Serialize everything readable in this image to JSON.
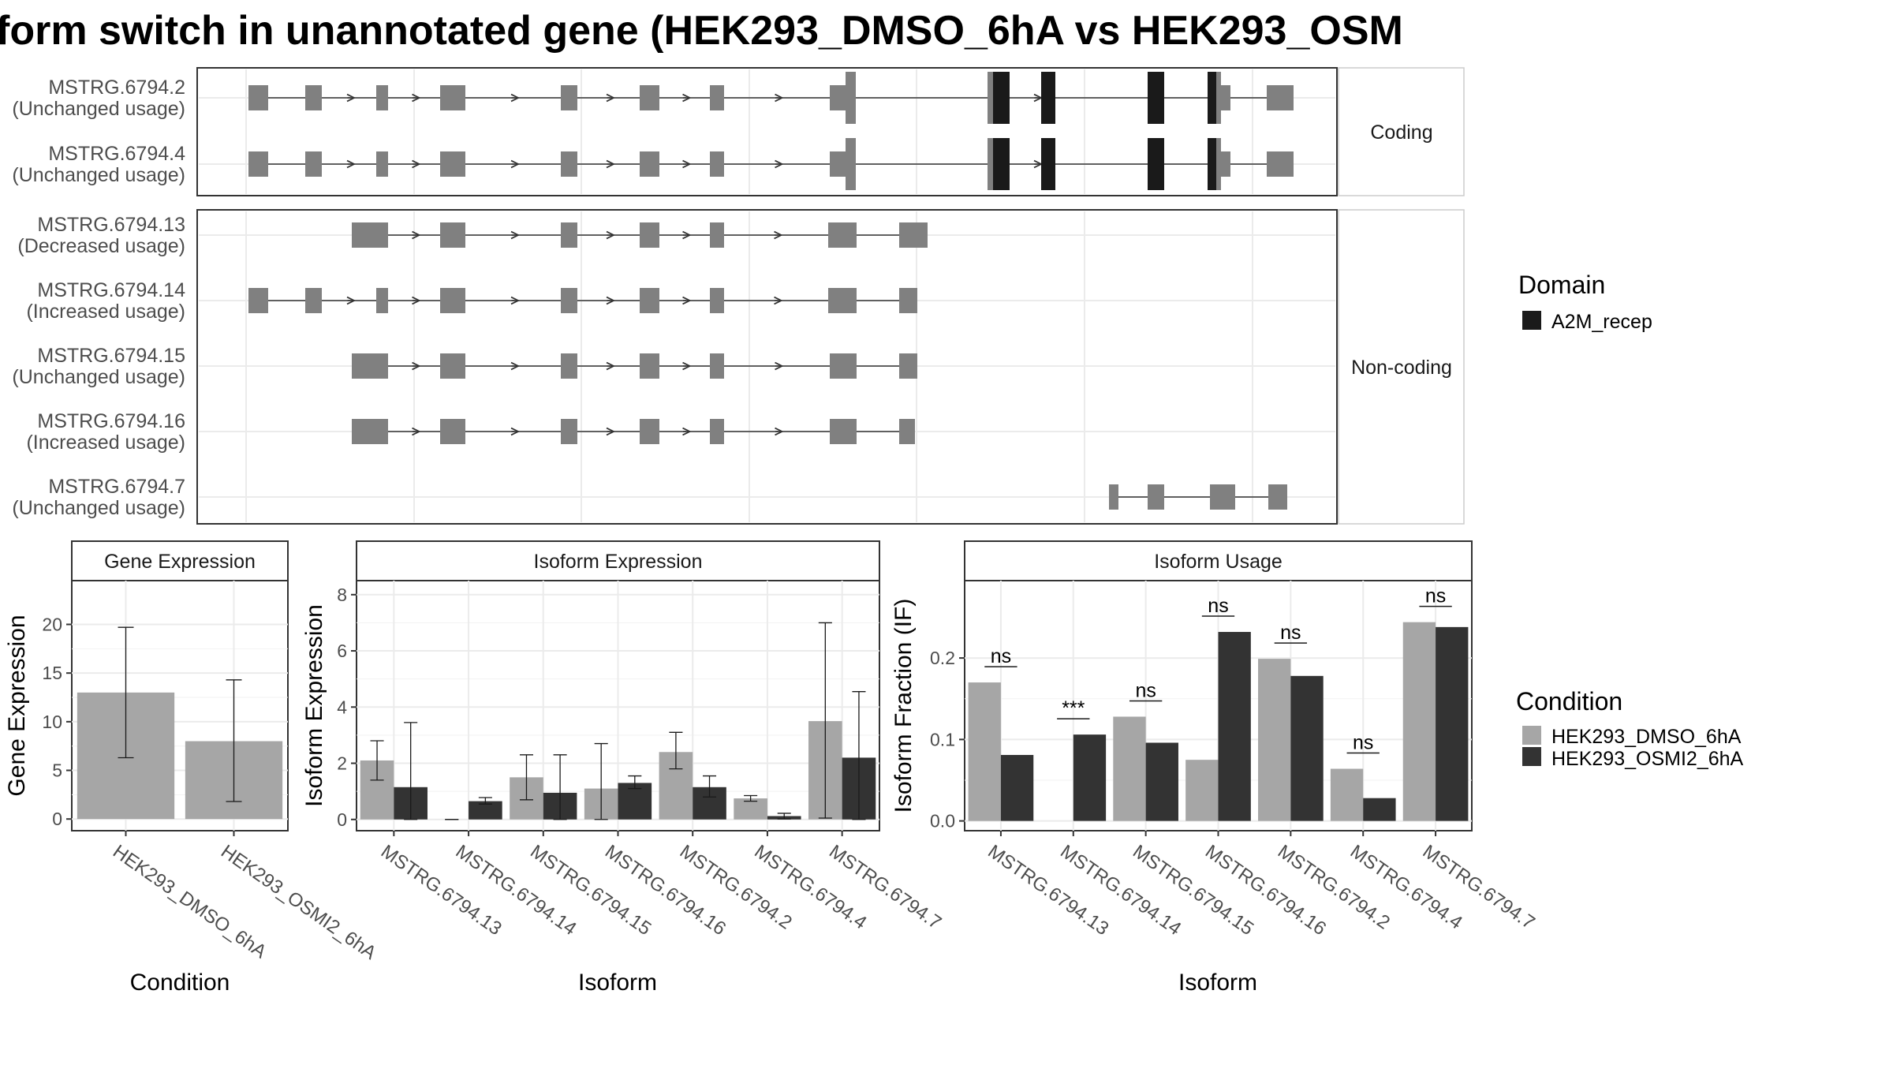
{
  "colors": {
    "exon": "#808080",
    "domain": "#1a1a1a",
    "dmso": "#a6a6a6",
    "osmi2": "#333333",
    "grid": "#ebebeb",
    "frame": "#333333",
    "strip_bg": "#ffffff"
  },
  "title": "form switch in unannotated gene (HEK293_DMSO_6hA vs HEK293_OSM",
  "transcripts": {
    "facets": [
      "Coding",
      "Non-coding"
    ],
    "rows": [
      {
        "name": "MSTRG.6794.2",
        "usage": "(Unchanged usage)",
        "facet": "Coding"
      },
      {
        "name": "MSTRG.6794.4",
        "usage": "(Unchanged usage)",
        "facet": "Coding"
      },
      {
        "name": "MSTRG.6794.13",
        "usage": "(Decreased usage)",
        "facet": "Non-coding"
      },
      {
        "name": "MSTRG.6794.14",
        "usage": "(Increased usage)",
        "facet": "Non-coding"
      },
      {
        "name": "MSTRG.6794.15",
        "usage": "(Unchanged usage)",
        "facet": "Non-coding"
      },
      {
        "name": "MSTRG.6794.16",
        "usage": "(Increased usage)",
        "facet": "Non-coding"
      },
      {
        "name": "MSTRG.6794.7",
        "usage": "(Unchanged usage)",
        "facet": "Non-coding"
      }
    ]
  },
  "legend_domain": {
    "title": "Domain",
    "items": [
      {
        "label": "A2M_recep",
        "color": "#1a1a1a"
      }
    ]
  },
  "legend_condition": {
    "title": "Condition",
    "items": [
      {
        "label": "HEK293_DMSO_6hA",
        "color": "#a6a6a6"
      },
      {
        "label": "HEK293_OSMI2_6hA",
        "color": "#333333"
      }
    ]
  },
  "chart_data": [
    {
      "type": "bar",
      "title": "Gene Expression",
      "xlabel": "Condition",
      "ylabel": "Gene Expression",
      "categories": [
        "HEK293_DMSO_6hA",
        "HEK293_OSMI2_6hA"
      ],
      "values": [
        13.0,
        8.0
      ],
      "error_low": [
        6.3,
        1.8
      ],
      "error_high": [
        19.7,
        14.3
      ],
      "yticks": [
        0,
        5,
        10,
        15,
        20
      ],
      "ylim": [
        -1.2,
        24.5
      ]
    },
    {
      "type": "bar",
      "title": "Isoform Expression",
      "xlabel": "Isoform",
      "ylabel": "Isoform Expression",
      "categories": [
        "MSTRG.6794.13",
        "MSTRG.6794.14",
        "MSTRG.6794.15",
        "MSTRG.6794.16",
        "MSTRG.6794.2",
        "MSTRG.6794.4",
        "MSTRG.6794.7"
      ],
      "series": [
        {
          "name": "HEK293_DMSO_6hA",
          "values": [
            2.1,
            0.0,
            1.5,
            1.1,
            2.4,
            0.75,
            3.5
          ],
          "error_low": [
            1.4,
            0.0,
            0.7,
            0.0,
            1.8,
            0.65,
            0.05
          ],
          "error_high": [
            2.8,
            0.0,
            2.3,
            2.7,
            3.1,
            0.85,
            7.0
          ]
        },
        {
          "name": "HEK293_OSMI2_6hA",
          "values": [
            1.15,
            0.65,
            0.95,
            1.3,
            1.15,
            0.12,
            2.2
          ],
          "error_low": [
            0.0,
            0.55,
            0.0,
            1.1,
            0.8,
            0.02,
            0.0
          ],
          "error_high": [
            3.45,
            0.78,
            2.3,
            1.55,
            1.55,
            0.22,
            4.55
          ]
        }
      ],
      "yticks": [
        0,
        2,
        4,
        6,
        8
      ],
      "ylim": [
        -0.4,
        8.5
      ]
    },
    {
      "type": "bar",
      "title": "Isoform Usage",
      "xlabel": "Isoform",
      "ylabel": "Isoform Fraction (IF)",
      "categories": [
        "MSTRG.6794.13",
        "MSTRG.6794.14",
        "MSTRG.6794.15",
        "MSTRG.6794.16",
        "MSTRG.6794.2",
        "MSTRG.6794.4",
        "MSTRG.6794.7"
      ],
      "series": [
        {
          "name": "HEK293_DMSO_6hA",
          "values": [
            0.17,
            0.0,
            0.128,
            0.075,
            0.199,
            0.064,
            0.244
          ]
        },
        {
          "name": "HEK293_OSMI2_6hA",
          "values": [
            0.081,
            0.106,
            0.096,
            0.232,
            0.178,
            0.028,
            0.238
          ]
        }
      ],
      "significance": [
        "ns",
        "***",
        "ns",
        "ns",
        "ns",
        "ns",
        "ns"
      ],
      "yticks": [
        "0.0",
        "0.1",
        "0.2"
      ],
      "ylim": [
        -0.012,
        0.295
      ]
    }
  ]
}
